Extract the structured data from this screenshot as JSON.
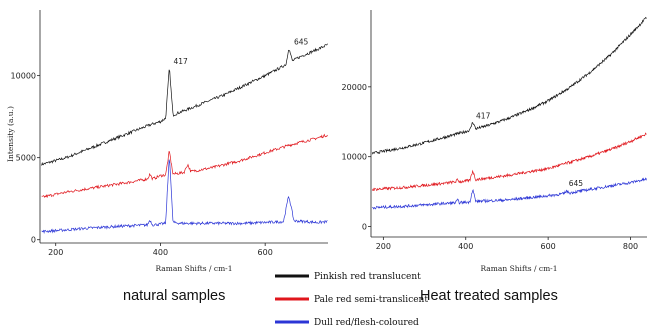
{
  "chart_data": [
    {
      "type": "line",
      "caption": "natural samples",
      "xlabel": "Raman Shifts / cm-1",
      "ylabel": "Intensity (a.u.)",
      "xlim": [
        170,
        720
      ],
      "ylim": [
        -200,
        14000
      ],
      "xticks": [
        200,
        400,
        600
      ],
      "yticks": [
        0,
        5000,
        10000
      ],
      "annotations": [
        {
          "text": "417",
          "x": 425,
          "y": 10700
        },
        {
          "text": "645",
          "x": 655,
          "y": 11900
        }
      ],
      "series": [
        {
          "name": "Pinkish red translucent",
          "color": "#111111",
          "points": [
            [
              175,
              4600
            ],
            [
              220,
              5000
            ],
            [
              260,
              5500
            ],
            [
              300,
              6000
            ],
            [
              340,
              6500
            ],
            [
              380,
              7000
            ],
            [
              400,
              7200
            ],
            [
              410,
              7400
            ],
            [
              417,
              10500
            ],
            [
              424,
              7600
            ],
            [
              440,
              7800
            ],
            [
              480,
              8300
            ],
            [
              520,
              8800
            ],
            [
              560,
              9400
            ],
            [
              600,
              10000
            ],
            [
              630,
              10500
            ],
            [
              640,
              10700
            ],
            [
              645,
              11700
            ],
            [
              652,
              10900
            ],
            [
              670,
              11200
            ],
            [
              700,
              11600
            ],
            [
              720,
              11900
            ]
          ]
        },
        {
          "name": "Pale red semi-translicent",
          "color": "#e0161c",
          "points": [
            [
              175,
              2600
            ],
            [
              220,
              2900
            ],
            [
              260,
              3100
            ],
            [
              300,
              3300
            ],
            [
              340,
              3500
            ],
            [
              375,
              3700
            ],
            [
              380,
              4000
            ],
            [
              385,
              3700
            ],
            [
              400,
              3900
            ],
            [
              410,
              3950
            ],
            [
              417,
              5400
            ],
            [
              424,
              4000
            ],
            [
              445,
              4100
            ],
            [
              452,
              4600
            ],
            [
              458,
              4150
            ],
            [
              500,
              4400
            ],
            [
              550,
              4800
            ],
            [
              600,
              5300
            ],
            [
              650,
              5800
            ],
            [
              700,
              6200
            ],
            [
              720,
              6400
            ]
          ]
        },
        {
          "name": "Dull red/flesh-coloured",
          "color": "#2b35d6",
          "points": [
            [
              175,
              500
            ],
            [
              220,
              600
            ],
            [
              260,
              700
            ],
            [
              300,
              780
            ],
            [
              340,
              850
            ],
            [
              375,
              900
            ],
            [
              380,
              1200
            ],
            [
              385,
              900
            ],
            [
              400,
              950
            ],
            [
              410,
              1000
            ],
            [
              417,
              5200
            ],
            [
              424,
              1050
            ],
            [
              440,
              1000
            ],
            [
              480,
              1000
            ],
            [
              520,
              1000
            ],
            [
              560,
              1000
            ],
            [
              600,
              1050
            ],
            [
              635,
              1100
            ],
            [
              645,
              2700
            ],
            [
              655,
              1150
            ],
            [
              680,
              1100
            ],
            [
              700,
              1050
            ],
            [
              720,
              1100
            ]
          ]
        }
      ]
    },
    {
      "type": "line",
      "caption": "Heat treated samples",
      "xlabel": "Raman Shifts / cm-1",
      "ylabel": "",
      "xlim": [
        170,
        840
      ],
      "ylim": [
        -1500,
        31000
      ],
      "xticks": [
        200,
        400,
        600,
        800
      ],
      "yticks": [
        0,
        10000,
        20000
      ],
      "annotations": [
        {
          "text": "417",
          "x": 425,
          "y": 15500
        },
        {
          "text": "645",
          "x": 650,
          "y": 5800
        }
      ],
      "series": [
        {
          "name": "Pinkish red translucent",
          "color": "#111111",
          "points": [
            [
              175,
              10500
            ],
            [
              250,
              11300
            ],
            [
              300,
              12000
            ],
            [
              350,
              12800
            ],
            [
              400,
              13600
            ],
            [
              410,
              13800
            ],
            [
              417,
              15000
            ],
            [
              424,
              14000
            ],
            [
              450,
              14400
            ],
            [
              500,
              15400
            ],
            [
              550,
              16600
            ],
            [
              600,
              18000
            ],
            [
              650,
              19800
            ],
            [
              700,
              22000
            ],
            [
              750,
              24500
            ],
            [
              800,
              27500
            ],
            [
              840,
              30000
            ]
          ]
        },
        {
          "name": "Pale red semi-translicent",
          "color": "#e0161c",
          "points": [
            [
              175,
              5300
            ],
            [
              250,
              5600
            ],
            [
              300,
              5900
            ],
            [
              350,
              6200
            ],
            [
              375,
              6400
            ],
            [
              380,
              6700
            ],
            [
              385,
              6400
            ],
            [
              410,
              6600
            ],
            [
              417,
              8000
            ],
            [
              424,
              6700
            ],
            [
              500,
              7300
            ],
            [
              600,
              8300
            ],
            [
              700,
              10000
            ],
            [
              760,
              11200
            ],
            [
              800,
              12200
            ],
            [
              840,
              13300
            ]
          ]
        },
        {
          "name": "Dull red/flesh-coloured",
          "color": "#2b35d6",
          "points": [
            [
              175,
              2700
            ],
            [
              250,
              2900
            ],
            [
              300,
              3100
            ],
            [
              350,
              3300
            ],
            [
              375,
              3400
            ],
            [
              380,
              3800
            ],
            [
              385,
              3400
            ],
            [
              410,
              3500
            ],
            [
              417,
              5400
            ],
            [
              424,
              3600
            ],
            [
              500,
              3800
            ],
            [
              550,
              4100
            ],
            [
              600,
              4400
            ],
            [
              638,
              4700
            ],
            [
              645,
              5100
            ],
            [
              652,
              4800
            ],
            [
              700,
              5300
            ],
            [
              750,
              5800
            ],
            [
              800,
              6300
            ],
            [
              840,
              6800
            ]
          ]
        }
      ]
    }
  ],
  "legend": [
    {
      "label": "Pinkish red translucent",
      "color": "#111111"
    },
    {
      "label": "Pale red semi-translicent",
      "color": "#e0161c"
    },
    {
      "label": "Dull red/flesh-coloured",
      "color": "#2b35d6"
    }
  ]
}
